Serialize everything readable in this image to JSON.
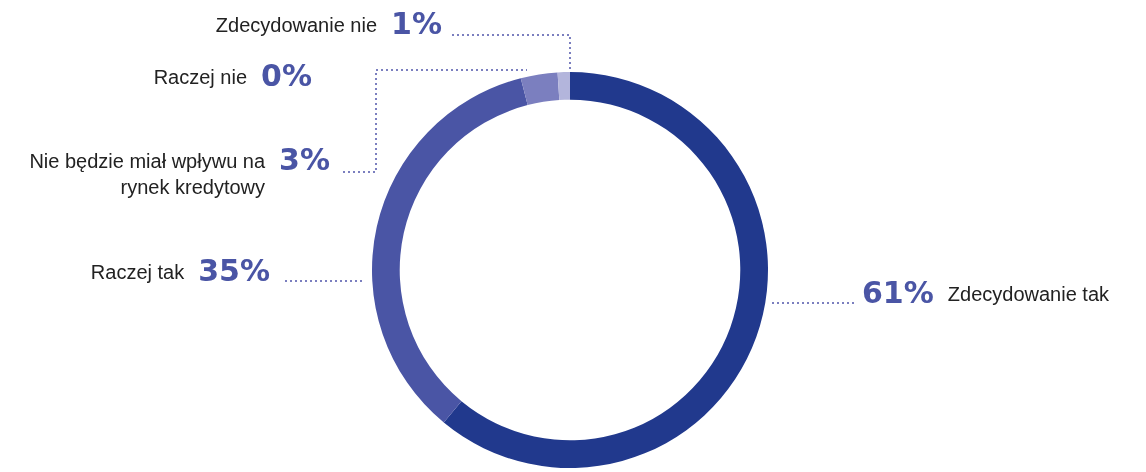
{
  "chart_data": {
    "type": "donut",
    "categories": [
      "Zdecydowanie tak",
      "Raczej tak",
      "Nie będzie miał wpływu na rynek kredytowy",
      "Raczej nie",
      "Zdecydowanie nie"
    ],
    "values": [
      61,
      35,
      3,
      0,
      1
    ],
    "value_labels": [
      "61%",
      "35%",
      "3%",
      "0%",
      "1%"
    ],
    "colors": [
      "#21398d",
      "#4a55a5",
      "#7b7fbf",
      "#9c9fd0",
      "#b3b5dc"
    ],
    "legend": false
  }
}
